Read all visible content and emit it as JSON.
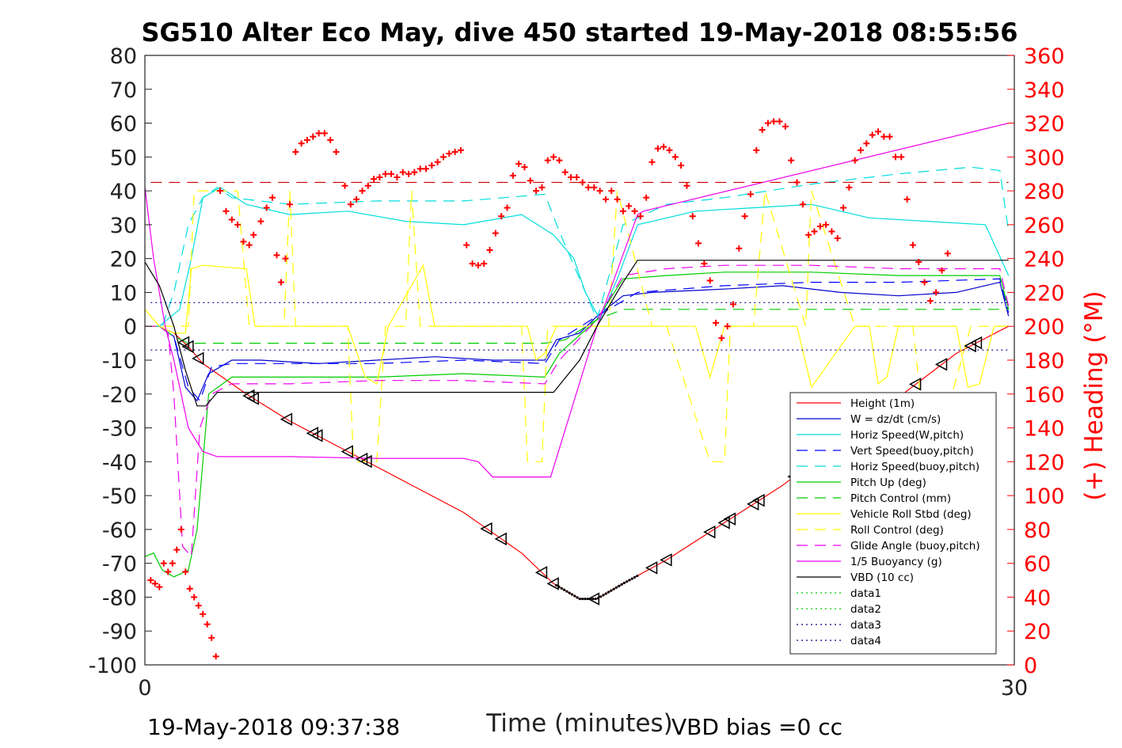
{
  "chart_data": {
    "type": "line",
    "title": "SG510 Alter Eco May, dive 450 started 19-May-2018 08:55:56",
    "xlabel": "Time (minutes)",
    "ylabel": "",
    "y2label": "(+) Heading (°M)",
    "xlim": [
      0,
      30
    ],
    "ylim": [
      -100,
      80
    ],
    "y2lim": [
      0,
      360
    ],
    "x_ticks": [
      "0",
      "30"
    ],
    "y_ticks": [
      "80",
      "70",
      "60",
      "50",
      "40",
      "30",
      "20",
      "10",
      "0",
      "-10",
      "-20",
      "-30",
      "-40",
      "-50",
      "-60",
      "-70",
      "-80",
      "-90",
      "-100"
    ],
    "y2_ticks": [
      "360",
      "340",
      "320",
      "300",
      "280",
      "260",
      "240",
      "220",
      "200",
      "180",
      "160",
      "140",
      "120",
      "100",
      "80",
      "60",
      "40",
      "20",
      "0"
    ],
    "grid": false,
    "legend_position": "lower-right",
    "footer_left": "19-May-2018 09:37:38",
    "footer_right": "VBD bias =0 cc",
    "series": [
      {
        "name": "Height (1m)",
        "color": "#ff0000",
        "style": "solid",
        "x": [
          0,
          0.5,
          1.0,
          1.5,
          2.0,
          3.5,
          5,
          7,
          9,
          11,
          13,
          14.1,
          15.0,
          15.6,
          16.5,
          18,
          20,
          22,
          24,
          26,
          28,
          29.8
        ],
        "values": [
          0,
          0,
          -2,
          -6,
          -11,
          -20,
          -28,
          -37,
          -46,
          -55,
          -67,
          -76,
          -80.5,
          -80.5,
          -76,
          -69,
          -58,
          -47,
          -34,
          -21,
          -8,
          0
        ]
      },
      {
        "name": "W = dz/dt (cm/s)",
        "color": "#0000cc",
        "style": "solid",
        "x": [
          0,
          0.5,
          1.0,
          1.4,
          1.8,
          2.2,
          3,
          4,
          6,
          8,
          10,
          12,
          13.8,
          14.2,
          15,
          15.6,
          16.5,
          17.5,
          20,
          22,
          24,
          26,
          28,
          29.5,
          29.8
        ],
        "values": [
          0,
          0,
          -3,
          -18,
          -22,
          -14,
          -10,
          -10,
          -11,
          -10,
          -9,
          -10,
          -10,
          -4,
          -2,
          3,
          9,
          10,
          11,
          12,
          10,
          9,
          10,
          13,
          3
        ]
      },
      {
        "name": "Horiz Speed(W,pitch)",
        "color": "#00dddd",
        "style": "solid",
        "x": [
          0,
          0.5,
          1.2,
          1.6,
          2.0,
          2.6,
          3.5,
          5,
          7,
          9,
          11,
          13,
          14.1,
          14.8,
          15.2,
          15.7,
          16.3,
          17,
          19,
          21,
          23,
          25,
          27,
          29,
          29.8
        ],
        "values": [
          0,
          0,
          5,
          20,
          38,
          41,
          36,
          33,
          34,
          31,
          30,
          33,
          27,
          20,
          10,
          2,
          14,
          30,
          34,
          35,
          36,
          32,
          31,
          30,
          15
        ]
      },
      {
        "name": "Vert Speed(buoy,pitch)",
        "color": "#0000ff",
        "style": "dashed",
        "x": [
          0,
          0.5,
          1.0,
          1.5,
          1.9,
          2.3,
          3,
          5,
          8,
          11,
          13.8,
          14.3,
          15.6,
          17,
          20,
          23,
          26,
          29.5,
          29.8
        ],
        "values": [
          0,
          0,
          -3,
          -18,
          -22,
          -12,
          -11,
          -11,
          -11,
          -10,
          -11,
          -4,
          3,
          10,
          12,
          13,
          13,
          14,
          4
        ]
      },
      {
        "name": "Horiz Speed(buoy,pitch)",
        "color": "#00dddd",
        "style": "dashed",
        "x": [
          0,
          0.6,
          1.0,
          1.5,
          2.0,
          2.5,
          3,
          5,
          8,
          11,
          13.8,
          14.3,
          15.6,
          16.5,
          18,
          20,
          23,
          26,
          28.5,
          29.5,
          29.8
        ],
        "values": [
          0,
          0,
          10,
          30,
          38,
          41,
          38,
          36,
          37,
          37,
          39,
          28,
          2,
          30,
          36,
          38,
          42,
          45,
          47,
          46,
          28
        ]
      },
      {
        "name": "Pitch Up (deg)",
        "color": "#00cc00",
        "style": "solid",
        "x": [
          0,
          0.3,
          0.6,
          1.0,
          1.5,
          1.8,
          2.2,
          3,
          5,
          8,
          11,
          13.8,
          14.3,
          15.6,
          16.5,
          18,
          20,
          23,
          26,
          29.5,
          29.8
        ],
        "values": [
          -68,
          -67,
          -72,
          -74,
          -72,
          -60,
          -20,
          -15,
          -15,
          -15,
          -14,
          -15,
          -8,
          2,
          14,
          15,
          16,
          16,
          15,
          15,
          5
        ]
      },
      {
        "name": "Pitch Control (mm)",
        "color": "#00cc00",
        "style": "dashed",
        "x": [
          0,
          0.5,
          1.0,
          1.5,
          2.0,
          13.8,
          14.5,
          15.6,
          16.5,
          29.8
        ],
        "values": [
          0,
          0,
          -3,
          -5,
          -5,
          -5,
          -4,
          2,
          5,
          5
        ]
      },
      {
        "name": "Vehicle Roll Stbd (deg)",
        "color": "#ffff00",
        "style": "solid",
        "x": [
          0,
          0.5,
          1.0,
          1.4,
          1.6,
          2.0,
          3.5,
          3.8,
          4.2,
          5,
          6,
          7,
          7.6,
          8.0,
          8.4,
          9.6,
          10,
          12,
          13.2,
          13.5,
          13.8,
          14.2,
          15.6,
          16.5,
          17.5,
          19,
          19.5,
          20.0,
          20.5,
          21,
          22.5,
          23,
          24.5,
          25,
          25.3,
          25.6,
          26,
          27.5,
          28,
          28.4,
          28.8,
          29.3,
          29.8
        ],
        "values": [
          5,
          0,
          -2,
          -2,
          17,
          18,
          17,
          0,
          0,
          0,
          0,
          0,
          -15,
          -17,
          0,
          18,
          0,
          0,
          0,
          -10,
          -8,
          0,
          0,
          0,
          0,
          0,
          -15,
          0,
          0,
          0,
          0,
          -18,
          0,
          0,
          -17,
          -15,
          0,
          0,
          0,
          -18,
          -17,
          0,
          0
        ]
      },
      {
        "name": "Roll Control (deg)",
        "color": "#ffff00",
        "style": "dashed",
        "x": [
          0,
          1.5,
          1.7,
          3.2,
          3.6,
          4.0,
          4.8,
          5.0,
          5.2,
          7.0,
          7.2,
          7.6,
          8.0,
          8.3,
          9.0,
          9.2,
          9.5,
          13.0,
          13.2,
          13.7,
          13.9,
          16.0,
          16.3,
          17.5,
          18.0,
          19.5,
          19.6,
          20.0,
          20.2,
          21.0,
          21.4,
          22.8,
          23.0,
          24.5,
          24.7,
          25.5,
          26.5,
          27.0,
          27.2,
          28.5,
          29.8
        ],
        "values": [
          0,
          0,
          40,
          40,
          0,
          0,
          0,
          40,
          0,
          0,
          -40,
          -40,
          -40,
          0,
          0,
          40,
          0,
          0,
          -40,
          -40,
          0,
          0,
          40,
          0,
          0,
          -40,
          -40,
          -40,
          0,
          0,
          40,
          0,
          40,
          0,
          0,
          0,
          0,
          -40,
          -40,
          0,
          0
        ]
      },
      {
        "name": "Glide Angle (buoy,pitch)",
        "color": "#ee00ee",
        "style": "dashed",
        "x": [
          0,
          0.5,
          0.8,
          1.0,
          1.3,
          1.6,
          1.9,
          2.3,
          3,
          5,
          8,
          11,
          13.8,
          14.3,
          15.6,
          16.5,
          18,
          20,
          23,
          26,
          29.5,
          29.8
        ],
        "values": [
          0,
          0,
          -2,
          -20,
          -65,
          -68,
          -30,
          -20,
          -17,
          -17,
          -16,
          -16,
          -17,
          -10,
          2,
          15,
          17,
          18,
          18,
          17,
          17,
          6
        ]
      },
      {
        "name": "1/5 Buoyancy (g)",
        "color": "#ee00ee",
        "style": "solid",
        "x": [
          0,
          0.3,
          0.7,
          1.0,
          1.5,
          2.0,
          2.5,
          5,
          8,
          11,
          11.5,
          12,
          14,
          15.6,
          17,
          17.2,
          29.8
        ],
        "values": [
          41,
          20,
          0,
          -10,
          -30,
          -37,
          -38.5,
          -38.5,
          -39,
          -39,
          -40,
          -44.5,
          -44.5,
          0,
          33,
          34,
          60
        ]
      },
      {
        "name": "VBD (10 cc)",
        "color": "#000000",
        "style": "solid",
        "x": [
          0,
          0.5,
          1.0,
          1.4,
          1.8,
          2.1,
          2.5,
          14.1,
          15.0,
          15.6,
          16.5,
          17.0,
          17.2,
          29.8
        ],
        "values": [
          19,
          12,
          0,
          -13,
          -23.5,
          -23.5,
          -19.5,
          -19.5,
          -10,
          0,
          13,
          19.5,
          19.5,
          19.5
        ]
      },
      {
        "name": "data1",
        "color": "#00cc00",
        "style": "dotted",
        "x": [],
        "values": []
      },
      {
        "name": "data2",
        "color": "#00cc00",
        "style": "dotted",
        "x": [],
        "values": []
      },
      {
        "name": "data3",
        "color": "#000088",
        "style": "dotted",
        "x": [
          0.2,
          29.8
        ],
        "values": [
          7,
          7
        ]
      },
      {
        "name": "data4",
        "color": "#000088",
        "style": "dotted",
        "x": [
          0.2,
          29.8
        ],
        "values": [
          -7,
          -7
        ]
      }
    ],
    "heading_mean": 285,
    "heading_points_x": [
      0.2,
      0.35,
      0.5,
      0.65,
      0.8,
      0.95,
      1.1,
      1.25,
      1.4,
      1.55,
      1.7,
      1.85,
      2.0,
      2.15,
      2.3,
      2.45,
      2.6,
      2.8,
      3.0,
      3.2,
      3.4,
      3.6,
      3.75,
      4.0,
      4.2,
      4.4,
      4.55,
      4.7,
      4.85,
      5.0,
      5.2,
      5.4,
      5.6,
      5.8,
      6.0,
      6.2,
      6.4,
      6.6,
      6.9,
      7.1,
      7.3,
      7.5,
      7.7,
      7.9,
      8.1,
      8.3,
      8.5,
      8.7,
      8.9,
      9.1,
      9.3,
      9.5,
      9.7,
      9.9,
      10.1,
      10.3,
      10.5,
      10.7,
      10.9,
      11.1,
      11.3,
      11.5,
      11.7,
      11.9,
      12.1,
      12.3,
      12.5,
      12.7,
      12.9,
      13.1,
      13.3,
      13.5,
      13.7,
      13.9,
      14.1,
      14.3,
      14.5,
      14.7,
      14.9,
      15.1,
      15.3,
      15.5,
      15.7,
      15.9,
      16.1,
      16.3,
      16.5,
      16.7,
      16.9,
      17.1,
      17.3,
      17.5,
      17.7,
      17.9,
      18.1,
      18.3,
      18.5,
      18.7,
      18.9,
      19.1,
      19.3,
      19.5,
      19.7,
      19.9,
      20.1,
      20.3,
      20.5,
      20.7,
      20.9,
      21.1,
      21.3,
      21.5,
      21.7,
      21.9,
      22.1,
      22.3,
      22.5,
      22.7,
      22.9,
      23.1,
      23.3,
      23.5,
      23.7,
      23.9,
      24.1,
      24.3,
      24.5,
      24.7,
      24.9,
      25.1,
      25.3,
      25.5,
      25.7,
      25.9,
      26.1,
      26.3,
      26.5,
      26.7,
      26.9,
      27.1,
      27.3,
      27.5,
      27.7,
      27.9,
      28.1,
      28.3,
      28.5,
      28.7,
      28.9,
      29.1,
      29.3,
      29.5,
      29.7,
      29.8
    ],
    "heading_points_y": [
      50,
      48,
      46,
      60,
      55,
      60,
      68,
      80,
      55,
      45,
      40,
      35,
      30,
      24,
      16,
      5,
      280,
      268,
      263,
      260,
      250,
      248,
      254,
      262,
      270,
      276,
      242,
      226,
      240,
      272,
      303,
      308,
      310,
      312,
      314,
      314,
      310,
      303,
      283,
      272,
      275,
      280,
      283,
      287,
      288,
      290,
      290,
      288,
      291,
      290,
      291,
      293,
      293,
      295,
      297,
      300,
      302,
      303,
      304,
      248,
      237,
      236,
      237,
      245,
      255,
      265,
      270,
      289,
      296,
      294,
      286,
      280,
      282,
      298,
      300,
      298,
      291,
      288,
      288,
      285,
      282,
      282,
      280,
      275,
      280,
      275,
      268,
      271,
      268,
      265,
      276,
      297,
      305,
      306,
      304,
      300,
      295,
      283,
      265,
      249,
      237,
      227,
      202,
      193,
      200,
      213,
      246,
      265,
      278,
      304,
      316,
      320,
      321,
      321,
      318,
      298,
      285,
      272,
      254,
      256,
      259,
      260,
      256,
      252,
      270,
      282,
      298,
      304,
      308,
      313,
      315,
      312,
      312,
      300,
      300,
      275,
      248,
      238,
      226,
      215,
      220,
      233,
      243
    ]
  }
}
